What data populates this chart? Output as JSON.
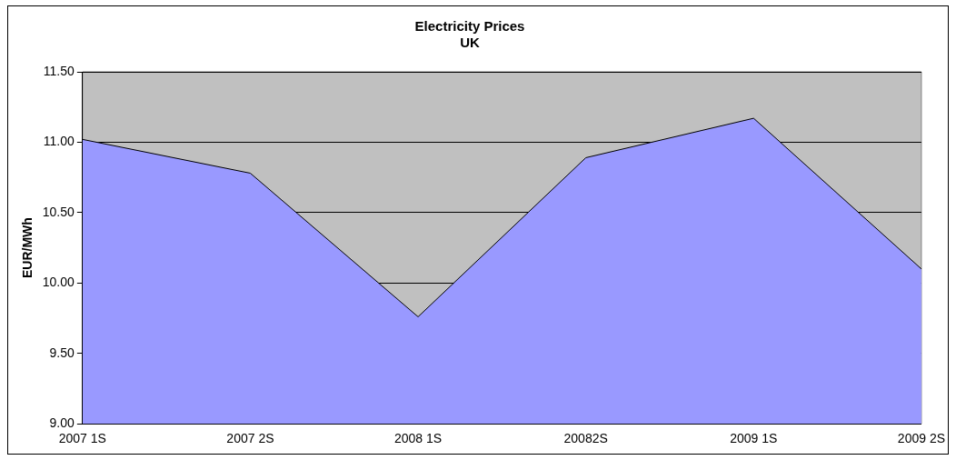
{
  "chart_data": {
    "type": "area",
    "title": "Electricity Prices",
    "subtitle": "UK",
    "ylabel": "EUR/MWh",
    "categories": [
      "2007 1S",
      "2007 2S",
      "2008 1S",
      "20082S",
      "2009 1S",
      "2009 2S"
    ],
    "series": [
      {
        "color": "#9999ff",
        "values": [
          11.02,
          10.78,
          9.76,
          10.89,
          11.17,
          10.1
        ]
      }
    ],
    "ylim": [
      9,
      11.5
    ],
    "yticks": [
      {
        "value": 9,
        "label": "9.00"
      },
      {
        "value": 9.5,
        "label": "9.50"
      },
      {
        "value": 10,
        "label": "10.00"
      },
      {
        "value": 10.5,
        "label": "10.50"
      },
      {
        "value": 11,
        "label": "11.00"
      },
      {
        "value": 11.5,
        "label": "11.50"
      }
    ],
    "grid": "y",
    "legend": false
  }
}
